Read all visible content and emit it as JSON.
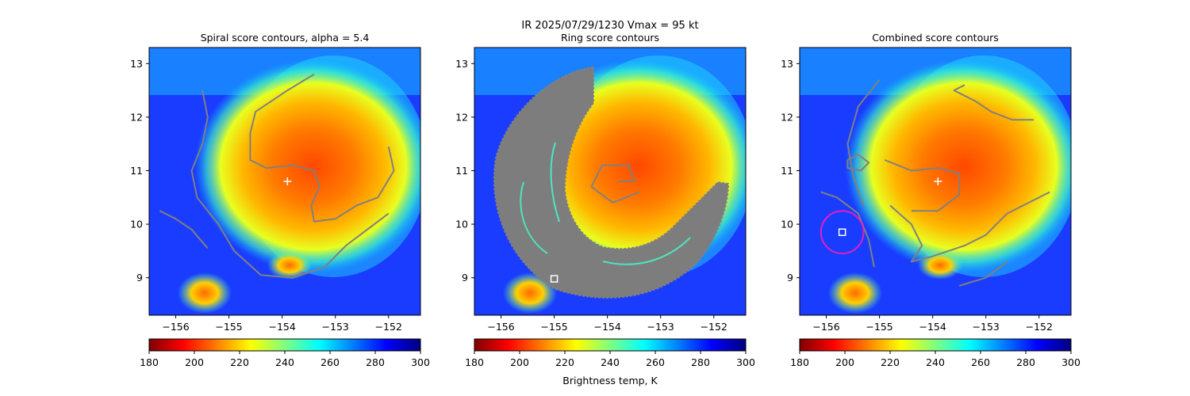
{
  "figure": {
    "suptitle_line1": "IR  2025/07/29/1230    Vmax = 95 kt",
    "colorbar_label": "Brightness temp, K"
  },
  "colormap": {
    "name": "jet_r",
    "stops": [
      "#7f0000",
      "#ff0000",
      "#ff7f00",
      "#ffff00",
      "#7fff7f",
      "#00ffff",
      "#007fff",
      "#0000ff",
      "#00007f"
    ]
  },
  "colors": {
    "contour": "#808080",
    "storm_center_marker": "#ffffff",
    "candidate_marker": "#ffffff",
    "search_ring": "#e020c0"
  },
  "chart_data": [
    {
      "type": "heatmap",
      "title": "Spiral score contours, alpha =  5.4",
      "xlabel": "",
      "ylabel": "",
      "xlim": [
        -156.5,
        -151.4
      ],
      "ylim": [
        8.3,
        13.3
      ],
      "xticks": [
        "−156",
        "−155",
        "−154",
        "−153",
        "−152"
      ],
      "xtick_values": [
        -156,
        -155,
        -154,
        -153,
        -152
      ],
      "yticks": [
        "9",
        "10",
        "11",
        "12",
        "13"
      ],
      "ytick_values": [
        9,
        10,
        11,
        12,
        13
      ],
      "colorbar": {
        "vmin": 180,
        "vmax": 300,
        "ticks": [
          "180",
          "200",
          "220",
          "240",
          "260",
          "280",
          "300"
        ],
        "tick_values": [
          180,
          200,
          220,
          240,
          260,
          280,
          300
        ]
      },
      "storm_center": {
        "lon": -153.9,
        "lat": 10.8,
        "marker": "+"
      },
      "contours": [
        [
          [
            -153.4,
            12.8
          ],
          [
            -153.9,
            12.5
          ],
          [
            -154.5,
            12.1
          ],
          [
            -154.6,
            11.7
          ],
          [
            -154.6,
            11.2
          ],
          [
            -154.3,
            11.05
          ],
          [
            -153.8,
            11.1
          ],
          [
            -153.4,
            11.0
          ],
          [
            -153.3,
            10.7
          ],
          [
            -153.45,
            10.35
          ],
          [
            -153.4,
            10.05
          ],
          [
            -153.0,
            10.1
          ],
          [
            -152.6,
            10.35
          ],
          [
            -152.2,
            10.5
          ],
          [
            -151.9,
            11.0
          ],
          [
            -152.0,
            11.45
          ]
        ],
        [
          [
            -155.5,
            12.5
          ],
          [
            -155.4,
            12.0
          ],
          [
            -155.5,
            11.5
          ],
          [
            -155.7,
            11.0
          ],
          [
            -155.6,
            10.5
          ],
          [
            -155.2,
            10.0
          ],
          [
            -154.9,
            9.5
          ],
          [
            -154.4,
            9.05
          ],
          [
            -153.8,
            9.0
          ],
          [
            -153.2,
            9.2
          ],
          [
            -152.8,
            9.6
          ],
          [
            -152.4,
            9.9
          ],
          [
            -152.0,
            10.2
          ]
        ],
        [
          [
            -156.3,
            10.25
          ],
          [
            -156.0,
            10.1
          ],
          [
            -155.7,
            9.9
          ],
          [
            -155.4,
            9.55
          ]
        ]
      ]
    },
    {
      "type": "heatmap",
      "title": "Ring score contours",
      "xlabel": "",
      "ylabel": "",
      "xlim": [
        -156.5,
        -151.4
      ],
      "ylim": [
        8.3,
        13.3
      ],
      "xticks": [
        "−156",
        "−155",
        "−154",
        "−153",
        "−152"
      ],
      "xtick_values": [
        -156,
        -155,
        -154,
        -153,
        -152
      ],
      "yticks": [
        "9",
        "10",
        "11",
        "12",
        "13"
      ],
      "ytick_values": [
        9,
        10,
        11,
        12,
        13
      ],
      "colorbar": {
        "vmin": 180,
        "vmax": 300,
        "ticks": [
          "180",
          "200",
          "220",
          "240",
          "260",
          "280",
          "300"
        ],
        "tick_values": [
          180,
          200,
          220,
          240,
          260,
          280,
          300
        ]
      },
      "storm_center": {
        "lon": -153.9,
        "lat": 10.8,
        "marker": "none"
      },
      "candidate_center": {
        "lon": -155.0,
        "lat": 8.98,
        "marker": "square"
      },
      "contours": [
        [
          [
            -153.8,
            10.8
          ],
          [
            -153.5,
            10.8
          ],
          [
            -153.6,
            11.1
          ],
          [
            -154.1,
            11.1
          ],
          [
            -154.3,
            10.7
          ],
          [
            -153.9,
            10.4
          ],
          [
            -153.4,
            10.6
          ]
        ]
      ]
    },
    {
      "type": "heatmap",
      "title": "Combined score contours",
      "xlabel": "",
      "ylabel": "",
      "xlim": [
        -156.5,
        -151.4
      ],
      "ylim": [
        8.3,
        13.3
      ],
      "xticks": [
        "−156",
        "−155",
        "−154",
        "−153",
        "−152"
      ],
      "xtick_values": [
        -156,
        -155,
        -154,
        -153,
        -152
      ],
      "yticks": [
        "9",
        "10",
        "11",
        "12",
        "13"
      ],
      "ytick_values": [
        9,
        10,
        11,
        12,
        13
      ],
      "colorbar": {
        "vmin": 180,
        "vmax": 300,
        "ticks": [
          "180",
          "200",
          "220",
          "240",
          "260",
          "280",
          "300"
        ],
        "tick_values": [
          180,
          200,
          220,
          240,
          260,
          280,
          300
        ]
      },
      "storm_center": {
        "lon": -153.9,
        "lat": 10.8,
        "marker": "+"
      },
      "candidate_center": {
        "lon": -155.7,
        "lat": 9.85,
        "marker": "square"
      },
      "search_ring": {
        "lon": -155.7,
        "lat": 9.85,
        "radius_deg": 0.4
      },
      "contours": [
        [
          [
            -153.4,
            12.6
          ],
          [
            -153.6,
            12.5
          ],
          [
            -153.2,
            12.3
          ],
          [
            -152.9,
            12.1
          ],
          [
            -152.5,
            11.95
          ],
          [
            -152.1,
            11.95
          ]
        ],
        [
          [
            -155.0,
            12.7
          ],
          [
            -155.4,
            12.2
          ],
          [
            -155.6,
            11.5
          ],
          [
            -155.5,
            10.9
          ],
          [
            -155.3,
            10.35
          ]
        ],
        [
          [
            -154.9,
            11.2
          ],
          [
            -154.4,
            11.0
          ],
          [
            -153.9,
            11.05
          ],
          [
            -153.5,
            10.95
          ],
          [
            -153.5,
            10.55
          ],
          [
            -153.9,
            10.25
          ],
          [
            -154.4,
            10.25
          ]
        ],
        [
          [
            -155.6,
            11.2
          ],
          [
            -155.4,
            11.3
          ],
          [
            -155.2,
            11.15
          ],
          [
            -155.35,
            11.0
          ],
          [
            -155.6,
            11.05
          ],
          [
            -155.6,
            11.2
          ]
        ],
        [
          [
            -156.1,
            10.6
          ],
          [
            -155.8,
            10.5
          ],
          [
            -155.4,
            10.2
          ],
          [
            -155.2,
            9.7
          ],
          [
            -155.1,
            9.2
          ]
        ],
        [
          [
            -154.8,
            10.35
          ],
          [
            -154.4,
            10.0
          ],
          [
            -154.2,
            9.6
          ],
          [
            -154.4,
            9.3
          ],
          [
            -154.0,
            9.4
          ],
          [
            -153.4,
            9.6
          ],
          [
            -153.0,
            9.8
          ],
          [
            -152.6,
            10.2
          ],
          [
            -152.2,
            10.4
          ],
          [
            -151.8,
            10.6
          ]
        ],
        [
          [
            -153.5,
            8.85
          ],
          [
            -153.0,
            9.0
          ],
          [
            -152.6,
            9.3
          ]
        ]
      ]
    }
  ]
}
